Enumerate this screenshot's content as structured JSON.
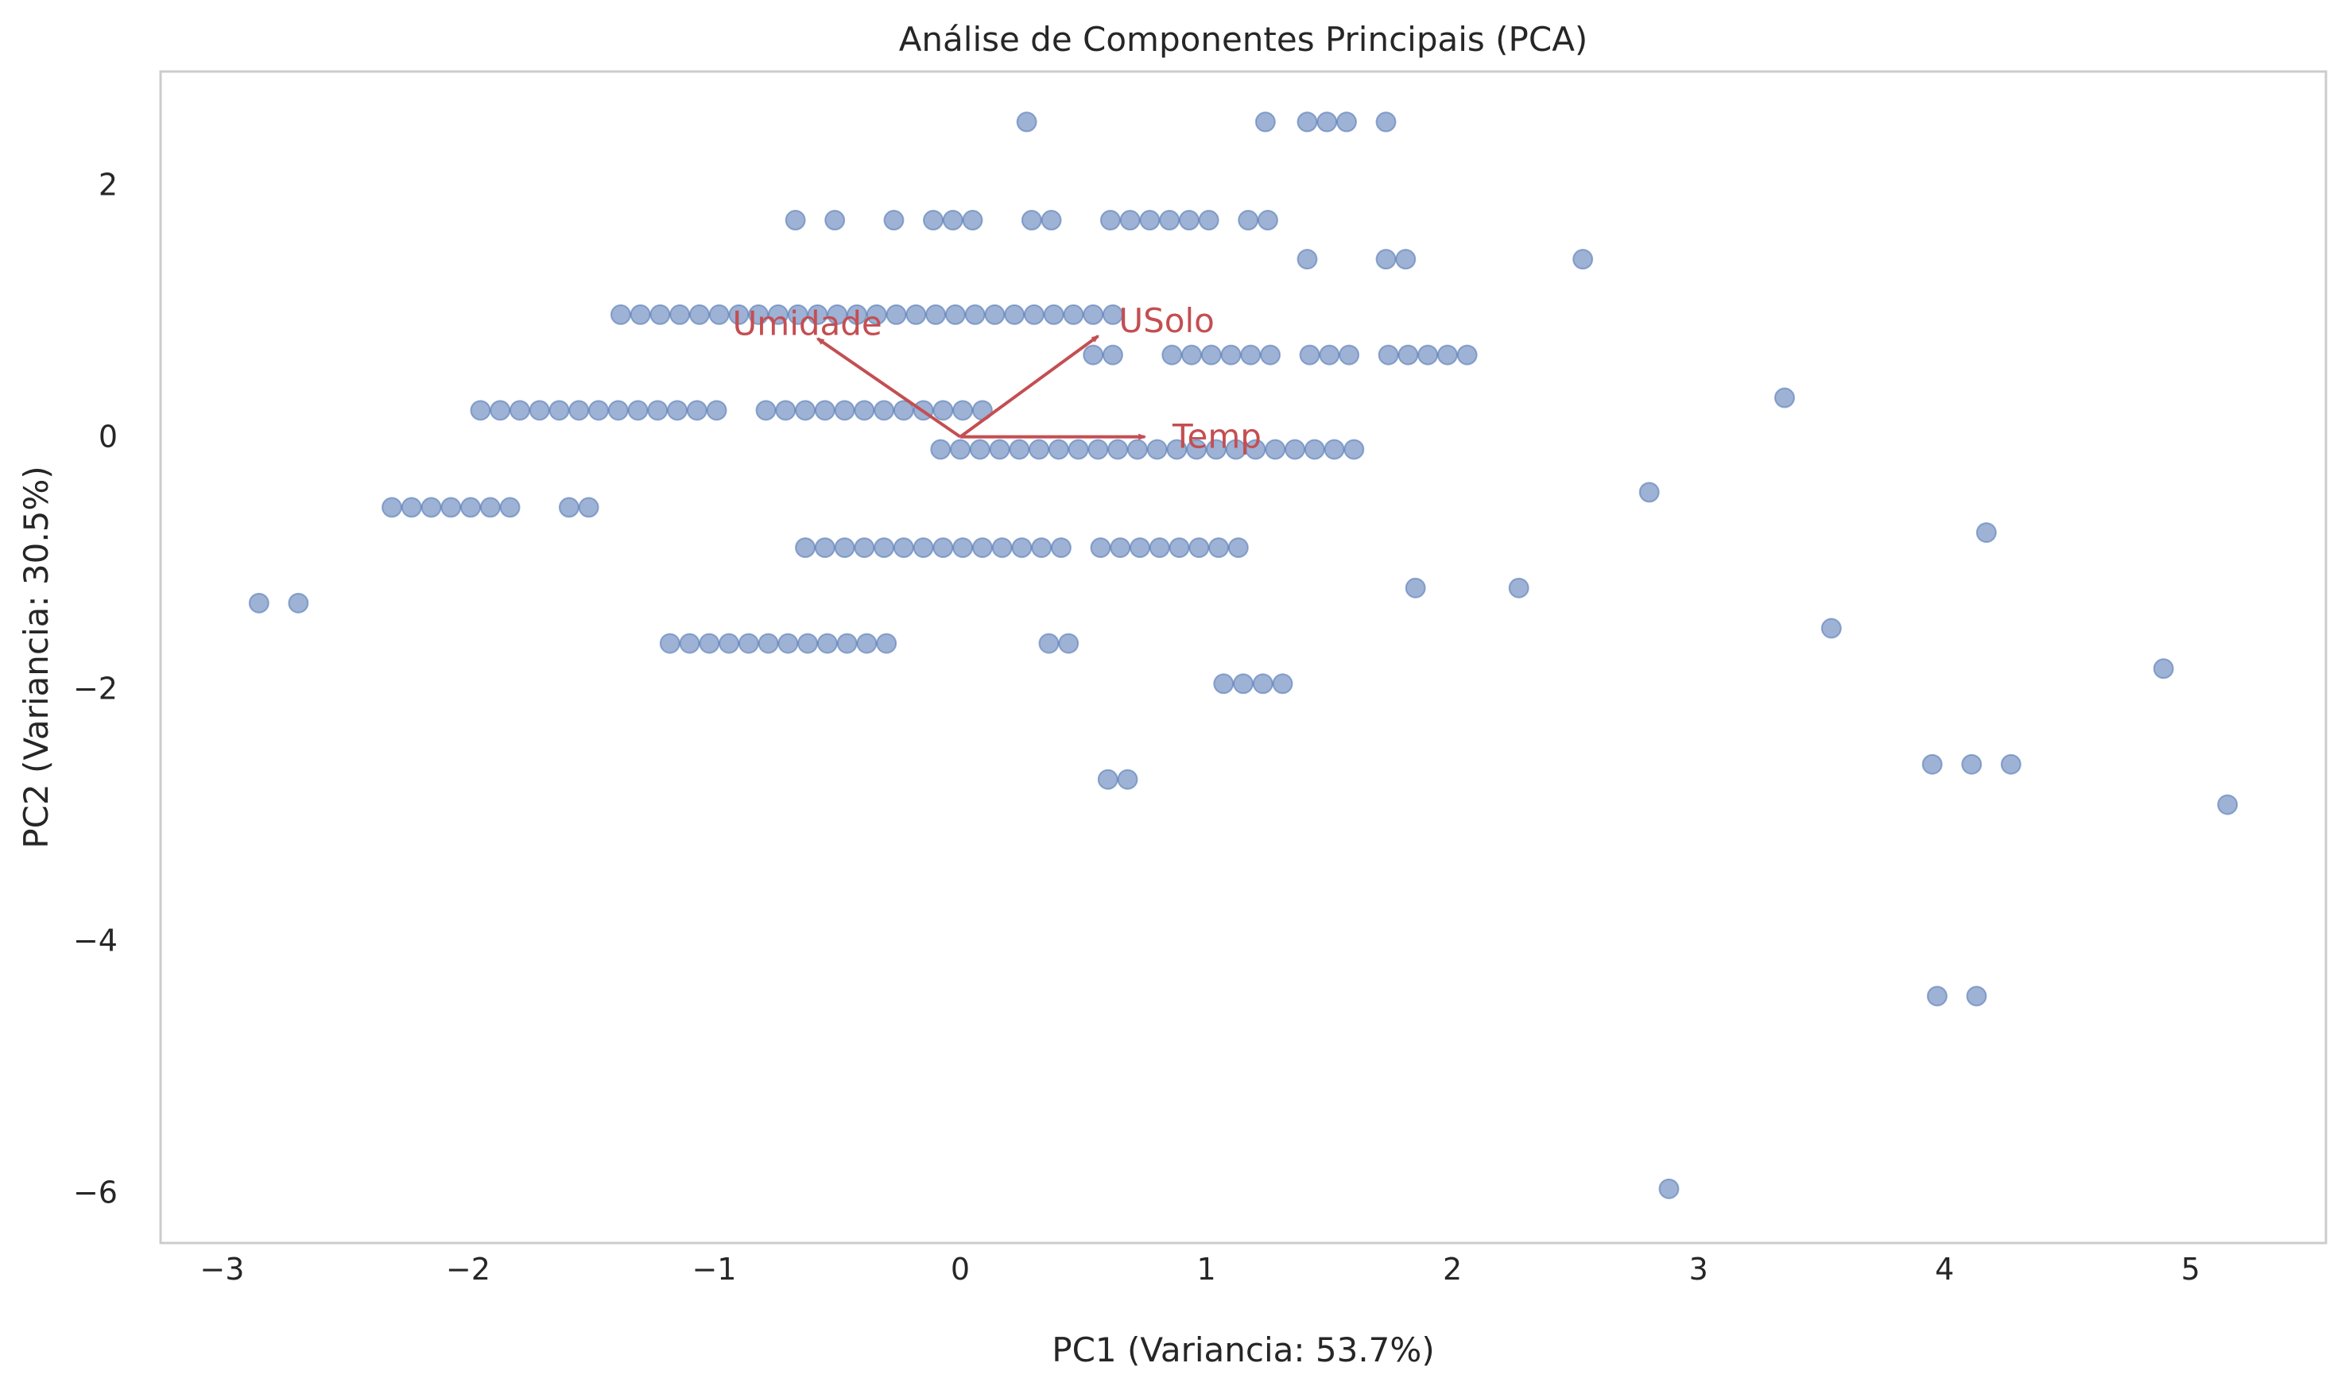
{
  "chart_data": {
    "type": "scatter",
    "title": "Análise de Componentes Principais (PCA)",
    "xlabel": "PC1 (Variancia: 53.7%)",
    "ylabel": "PC2 (Variancia: 30.5%)",
    "xlim": [
      -3.25,
      5.55
    ],
    "ylim": [
      -6.4,
      2.9
    ],
    "xticks": [
      -3,
      -2,
      -1,
      0,
      1,
      2,
      3,
      4,
      5
    ],
    "yticks": [
      2,
      0,
      -2,
      -4,
      -6
    ],
    "xtick_labels": [
      "−3",
      "−2",
      "−1",
      "0",
      "1",
      "2",
      "3",
      "4",
      "5"
    ],
    "ytick_labels": [
      "2",
      "0",
      "−2",
      "−4",
      "−6"
    ],
    "grid": false,
    "point_color": "#4c72b0",
    "arrow_color": "#c44e52",
    "rows": [
      {
        "y": 2.5,
        "xs": [
          0.27,
          1.24,
          1.41,
          1.49,
          1.57,
          1.73
        ]
      },
      {
        "y": 1.72,
        "xs": [
          -0.67,
          -0.51,
          -0.27,
          -0.11,
          -0.03,
          0.05,
          0.29,
          0.37,
          0.61,
          0.69,
          0.77,
          0.85,
          0.93,
          1.01,
          1.17,
          1.25
        ]
      },
      {
        "y": 1.41,
        "xs": [
          1.41,
          1.73,
          1.81,
          2.53
        ]
      },
      {
        "y": 0.97,
        "xs": [
          -1.38,
          -1.3,
          -1.22,
          -1.14,
          -1.06,
          -0.98,
          -0.9,
          -0.82,
          -0.74,
          -0.66,
          -0.58,
          -0.5,
          -0.42,
          -0.34,
          -0.26,
          -0.18,
          -0.1,
          -0.02,
          0.06,
          0.14,
          0.22,
          0.3,
          0.38,
          0.46,
          0.54,
          0.62
        ]
      },
      {
        "y": 0.65,
        "xs": [
          0.54,
          0.62,
          0.86,
          0.94,
          1.02,
          1.1,
          1.18,
          1.26,
          1.42,
          1.5,
          1.58,
          1.74,
          1.82,
          1.9,
          1.98,
          2.06
        ]
      },
      {
        "y": 0.31,
        "xs": [
          3.35
        ]
      },
      {
        "y": 0.21,
        "xs": [
          -1.95,
          -1.87,
          -1.79,
          -1.71,
          -1.63,
          -1.55,
          -1.47,
          -1.39,
          -1.31,
          -1.23,
          -1.15,
          -1.07,
          -0.99,
          -0.79,
          -0.71,
          -0.63,
          -0.55,
          -0.47,
          -0.39,
          -0.31,
          -0.23,
          -0.15,
          -0.07,
          0.01,
          0.09
        ]
      },
      {
        "y": -0.1,
        "xs": [
          -0.08,
          0.0,
          0.08,
          0.16,
          0.24,
          0.32,
          0.4,
          0.48,
          0.56,
          0.64,
          0.72,
          0.8,
          0.88,
          0.96,
          1.04,
          1.12,
          1.2,
          1.28,
          1.36,
          1.44,
          1.52,
          1.6
        ]
      },
      {
        "y": -0.44,
        "xs": [
          2.8
        ]
      },
      {
        "y": -0.56,
        "xs": [
          -2.31,
          -2.23,
          -2.15,
          -2.07,
          -1.99,
          -1.91,
          -1.83,
          -1.59,
          -1.51
        ]
      },
      {
        "y": -0.76,
        "xs": [
          4.17
        ]
      },
      {
        "y": -0.88,
        "xs": [
          -0.63,
          -0.55,
          -0.47,
          -0.39,
          -0.31,
          -0.23,
          -0.15,
          -0.07,
          0.01,
          0.09,
          0.17,
          0.25,
          0.33,
          0.41,
          0.57,
          0.65,
          0.73,
          0.81,
          0.89,
          0.97,
          1.05,
          1.13
        ]
      },
      {
        "y": -1.2,
        "xs": [
          1.85,
          2.27
        ]
      },
      {
        "y": -1.32,
        "xs": [
          -2.85,
          -2.69
        ]
      },
      {
        "y": -1.52,
        "xs": [
          3.54
        ]
      },
      {
        "y": -1.64,
        "xs": [
          -1.18,
          -1.1,
          -1.02,
          -0.94,
          -0.86,
          -0.78,
          -0.7,
          -0.62,
          -0.54,
          -0.46,
          -0.38,
          -0.3,
          0.36,
          0.44
        ]
      },
      {
        "y": -1.84,
        "xs": [
          4.89
        ]
      },
      {
        "y": -1.96,
        "xs": [
          1.07,
          1.15,
          1.23,
          1.31
        ]
      },
      {
        "y": -2.6,
        "xs": [
          3.95,
          4.11,
          4.27
        ]
      },
      {
        "y": -2.72,
        "xs": [
          0.6,
          0.68
        ]
      },
      {
        "y": -2.92,
        "xs": [
          5.15
        ]
      },
      {
        "y": -4.44,
        "xs": [
          3.97,
          4.13
        ]
      },
      {
        "y": -5.97,
        "xs": [
          2.88
        ]
      }
    ],
    "loadings": [
      {
        "name": "Umidade",
        "x": -0.58,
        "y": 0.78
      },
      {
        "name": "USolo",
        "x": 0.56,
        "y": 0.8
      },
      {
        "name": "Temp",
        "x": 0.75,
        "y": 0.0
      }
    ]
  }
}
